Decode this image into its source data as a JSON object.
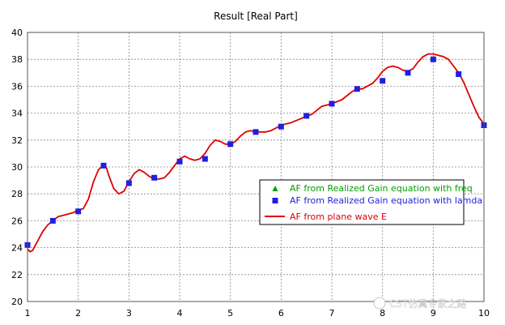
{
  "chart_data": {
    "type": "line",
    "title": "Result [Real Part]",
    "xlabel": "",
    "ylabel": "",
    "xlim": [
      1,
      10
    ],
    "ylim": [
      20,
      40
    ],
    "x_ticks": [
      1,
      2,
      3,
      4,
      5,
      6,
      7,
      8,
      9,
      10
    ],
    "y_ticks": [
      20,
      22,
      24,
      26,
      28,
      30,
      32,
      34,
      36,
      38,
      40
    ],
    "grid": true,
    "legend_position": "center-right",
    "series": [
      {
        "name": "AF from Realized Gain equation with freq",
        "kind": "marker-triangle",
        "color": "#00a000",
        "x": [],
        "y": []
      },
      {
        "name": "AF from Realized Gain equation with lamda",
        "kind": "marker-square",
        "color": "#1f1fe0",
        "x": [
          1,
          1.5,
          2,
          2.5,
          3,
          3.5,
          4,
          4.5,
          5,
          5.5,
          6,
          6.5,
          7,
          7.5,
          8,
          8.5,
          9,
          9.5,
          10
        ],
        "y": [
          24.2,
          26.0,
          26.7,
          30.1,
          28.8,
          29.2,
          30.4,
          30.6,
          31.7,
          32.6,
          33.0,
          33.8,
          34.7,
          35.8,
          36.4,
          37.0,
          38.0,
          36.9,
          33.1
        ]
      },
      {
        "name": "AF from plane wave E",
        "kind": "line",
        "color": "#e00000",
        "x": [
          1,
          1.05,
          1.1,
          1.2,
          1.3,
          1.4,
          1.5,
          1.6,
          1.7,
          1.8,
          1.9,
          2,
          2.1,
          2.2,
          2.3,
          2.4,
          2.5,
          2.55,
          2.6,
          2.7,
          2.8,
          2.9,
          3,
          3.1,
          3.2,
          3.3,
          3.4,
          3.5,
          3.6,
          3.7,
          3.8,
          3.9,
          4,
          4.1,
          4.2,
          4.3,
          4.4,
          4.5,
          4.6,
          4.7,
          4.8,
          4.9,
          5,
          5.1,
          5.2,
          5.3,
          5.4,
          5.5,
          5.6,
          5.7,
          5.8,
          5.9,
          6,
          6.2,
          6.4,
          6.5,
          6.6,
          6.8,
          7,
          7.2,
          7.4,
          7.5,
          7.6,
          7.8,
          7.9,
          8,
          8.1,
          8.2,
          8.3,
          8.4,
          8.5,
          8.6,
          8.7,
          8.8,
          8.9,
          9,
          9.1,
          9.2,
          9.3,
          9.4,
          9.5,
          9.6,
          9.7,
          9.8,
          9.9,
          10
        ],
        "y": [
          23.9,
          23.7,
          23.8,
          24.5,
          25.2,
          25.7,
          26.0,
          26.3,
          26.4,
          26.5,
          26.6,
          26.8,
          26.9,
          27.6,
          28.9,
          29.8,
          30.1,
          30.0,
          29.4,
          28.4,
          28.0,
          28.2,
          28.9,
          29.5,
          29.8,
          29.6,
          29.3,
          29.1,
          29.1,
          29.2,
          29.6,
          30.1,
          30.6,
          30.8,
          30.6,
          30.5,
          30.6,
          31.0,
          31.6,
          32.0,
          31.9,
          31.7,
          31.7,
          31.9,
          32.3,
          32.6,
          32.7,
          32.6,
          32.6,
          32.6,
          32.7,
          32.9,
          33.1,
          33.3,
          33.6,
          33.8,
          33.9,
          34.5,
          34.7,
          35.0,
          35.6,
          35.8,
          35.8,
          36.2,
          36.6,
          37.1,
          37.4,
          37.5,
          37.4,
          37.2,
          37.1,
          37.3,
          37.8,
          38.2,
          38.4,
          38.4,
          38.3,
          38.2,
          38.0,
          37.5,
          37.0,
          36.3,
          35.4,
          34.5,
          33.7,
          33.2
        ]
      }
    ]
  },
  "watermark": {
    "text": "CST仿真专家之路"
  },
  "colors": {
    "grid": "#888888",
    "frame": "#555555"
  }
}
